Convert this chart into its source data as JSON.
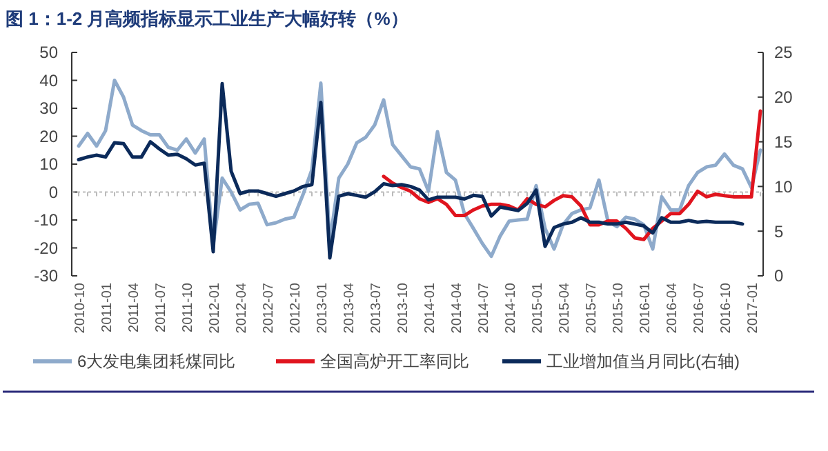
{
  "chart_data": {
    "type": "line",
    "title": "图 1：1-2 月高频指标显示工业生产大幅好转（%）",
    "categories": [
      "2010-10",
      null,
      null,
      "2011-01",
      null,
      null,
      "2011-04",
      null,
      null,
      "2011-07",
      null,
      null,
      "2011-10",
      null,
      null,
      "2012-01",
      null,
      null,
      "2012-04",
      null,
      null,
      "2012-07",
      null,
      null,
      "2012-10",
      null,
      null,
      "2013-01",
      null,
      null,
      "2013-04",
      null,
      null,
      "2013-07",
      null,
      null,
      "2013-10",
      null,
      null,
      "2014-01",
      null,
      null,
      "2014-04",
      null,
      null,
      "2014-07",
      null,
      null,
      "2014-10",
      null,
      null,
      "2015-01",
      null,
      null,
      "2015-04",
      null,
      null,
      "2015-07",
      null,
      null,
      "2015-10",
      null,
      null,
      "2016-01",
      null,
      null,
      "2016-04",
      null,
      null,
      "2016-07",
      null,
      null,
      "2016-10",
      null,
      null,
      "2017-01",
      null
    ],
    "series": [
      {
        "name": "6大发电集团耗煤同比",
        "color": "#8eaacb",
        "values": [
          16.5,
          21,
          16.5,
          22,
          40,
          34,
          24,
          22,
          20.5,
          20.5,
          16,
          15,
          19,
          14,
          19,
          -19,
          5,
          0,
          -6.4,
          -4.4,
          -4,
          -11.7,
          -11,
          -9.7,
          -9,
          -1,
          8,
          39,
          -18,
          5,
          10,
          17.6,
          19.6,
          24,
          33,
          17,
          13,
          9,
          8.3,
          0.3,
          21.6,
          7,
          4.3,
          -7.7,
          -13,
          -18.4,
          -23,
          -15.7,
          -10.4,
          -10,
          -9.7,
          2.3,
          -13,
          -20.4,
          -11.7,
          -7.7,
          -6.4,
          -5.7,
          4.3,
          -10.4,
          -12.4,
          -9,
          -9.7,
          -11.7,
          -20.4,
          -1.7,
          -6.4,
          -6.4,
          2.3,
          7,
          9,
          9.6,
          13.6,
          9.6,
          8.3,
          1.6,
          15
        ]
      },
      {
        "name": "全国高炉开工率同比",
        "color": "#e0141e",
        "values": [
          null,
          null,
          null,
          null,
          null,
          null,
          null,
          null,
          null,
          null,
          null,
          null,
          null,
          null,
          null,
          null,
          null,
          null,
          null,
          null,
          null,
          null,
          null,
          null,
          null,
          null,
          null,
          null,
          null,
          null,
          null,
          null,
          null,
          null,
          5.6,
          3.2,
          1.6,
          0.3,
          -2.4,
          -3.7,
          -2.4,
          -4.4,
          -8.4,
          -8.4,
          -6.4,
          -5,
          -4.4,
          -4.4,
          -5,
          -6.4,
          -2.4,
          -4.4,
          -5.3,
          -3,
          -1.3,
          -1.7,
          -5,
          -11.7,
          -11.7,
          -10.4,
          -10.4,
          -13,
          -16.4,
          -17,
          -13,
          -10.4,
          -7.7,
          -7.7,
          -4.4,
          0.3,
          -1.7,
          -0.8,
          -1.3,
          -1.7,
          -1.7,
          -1.7,
          29
        ]
      },
      {
        "name": "工业增加值当月同比(右轴)",
        "color": "#0b2a5a",
        "axis": "y2",
        "values": [
          13,
          13.3,
          13.5,
          13.3,
          14.9,
          14.8,
          13.3,
          13.3,
          15,
          14.2,
          13.5,
          13.6,
          13.1,
          12.4,
          12.6,
          2.7,
          21.5,
          11.7,
          9.2,
          9.5,
          9.5,
          9.2,
          8.9,
          9.2,
          9.5,
          10,
          10.2,
          19.4,
          2,
          8.9,
          9.2,
          9,
          8.8,
          9.4,
          10.3,
          10.1,
          10.2,
          10,
          9.6,
          8.5,
          8.8,
          8.8,
          8.8,
          8.6,
          9,
          8.9,
          6.7,
          7.7,
          7.5,
          7.3,
          8.1,
          9.6,
          3.3,
          5.4,
          5.8,
          6,
          6.5,
          6,
          6,
          5.8,
          5.8,
          6,
          5.8,
          5.6,
          4.8,
          6.5,
          6,
          6,
          6.2,
          6,
          6.1,
          6,
          6,
          6,
          5.8,
          null,
          null
        ]
      }
    ],
    "ylim": [
      -30,
      50
    ],
    "yticks": [
      -30,
      -20,
      -10,
      0,
      10,
      20,
      30,
      40,
      50
    ],
    "y2lim": [
      0,
      25
    ],
    "y2ticks": [
      0,
      5,
      10,
      15,
      20,
      25
    ],
    "legend": "bottom"
  }
}
